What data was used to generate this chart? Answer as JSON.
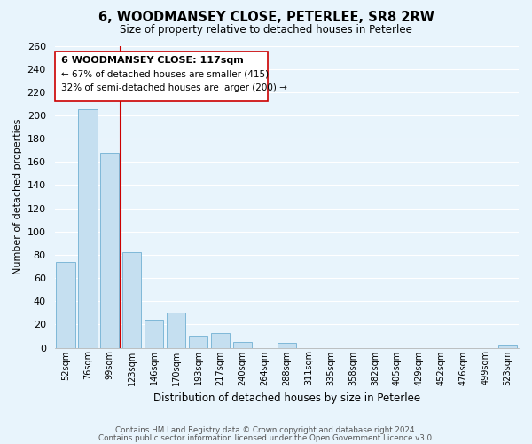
{
  "title": "6, WOODMANSEY CLOSE, PETERLEE, SR8 2RW",
  "subtitle": "Size of property relative to detached houses in Peterlee",
  "xlabel": "Distribution of detached houses by size in Peterlee",
  "ylabel": "Number of detached properties",
  "bar_labels": [
    "52sqm",
    "76sqm",
    "99sqm",
    "123sqm",
    "146sqm",
    "170sqm",
    "193sqm",
    "217sqm",
    "240sqm",
    "264sqm",
    "288sqm",
    "311sqm",
    "335sqm",
    "358sqm",
    "382sqm",
    "405sqm",
    "429sqm",
    "452sqm",
    "476sqm",
    "499sqm",
    "523sqm"
  ],
  "bar_values": [
    74,
    205,
    168,
    82,
    24,
    30,
    10,
    13,
    5,
    0,
    4,
    0,
    0,
    0,
    0,
    0,
    0,
    0,
    0,
    0,
    2
  ],
  "bar_color": "#c5dff0",
  "bar_edge_color": "#7fb8d8",
  "ylim": [
    0,
    260
  ],
  "yticks": [
    0,
    20,
    40,
    60,
    80,
    100,
    120,
    140,
    160,
    180,
    200,
    220,
    240,
    260
  ],
  "vline_x": 2.5,
  "vline_color": "#cc0000",
  "annotation_title": "6 WOODMANSEY CLOSE: 117sqm",
  "annotation_line1": "← 67% of detached houses are smaller (415)",
  "annotation_line2": "32% of semi-detached houses are larger (200) →",
  "footer_line1": "Contains HM Land Registry data © Crown copyright and database right 2024.",
  "footer_line2": "Contains public sector information licensed under the Open Government Licence v3.0.",
  "background_color": "#e8f4fc",
  "grid_color": "#ffffff",
  "annotation_box_color": "#ffffff",
  "annotation_box_edge": "#cc0000"
}
